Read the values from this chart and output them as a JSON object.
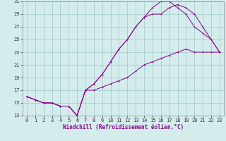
{
  "title": "",
  "xlabel": "Windchill (Refroidissement éolien,°C)",
  "ylabel": "",
  "xlim": [
    -0.5,
    23.5
  ],
  "ylim": [
    13,
    31
  ],
  "xticks": [
    0,
    1,
    2,
    3,
    4,
    5,
    6,
    7,
    8,
    9,
    10,
    11,
    12,
    13,
    14,
    15,
    16,
    17,
    18,
    19,
    20,
    21,
    22,
    23
  ],
  "yticks": [
    13,
    15,
    17,
    19,
    21,
    23,
    25,
    27,
    29,
    31
  ],
  "bg_color": "#d4ecec",
  "grid_color": "#a0c8c8",
  "line_color": "#880088",
  "line1_x": [
    0,
    1,
    2,
    3,
    4,
    5,
    6,
    7,
    8,
    9,
    10,
    11,
    12,
    13,
    14,
    15,
    16,
    17,
    18,
    19,
    20,
    21,
    22,
    23
  ],
  "line1_y": [
    16,
    15.5,
    15,
    15,
    14.5,
    14.5,
    13,
    17,
    18,
    19.5,
    21.5,
    23.5,
    25,
    27,
    28.5,
    29,
    29,
    30,
    30.5,
    30,
    29,
    27,
    25,
    23
  ],
  "line2_x": [
    0,
    1,
    2,
    3,
    4,
    5,
    6,
    7,
    8,
    9,
    10,
    11,
    12,
    13,
    14,
    15,
    16,
    17,
    18,
    19,
    20,
    21,
    22,
    23
  ],
  "line2_y": [
    16,
    15.5,
    15,
    15,
    14.5,
    14.5,
    13,
    17,
    18,
    19.5,
    21.5,
    23.5,
    25,
    27,
    28.5,
    30,
    31,
    31,
    30,
    29,
    27,
    26,
    25,
    23
  ],
  "line3_x": [
    0,
    1,
    2,
    3,
    4,
    5,
    6,
    7,
    8,
    9,
    10,
    11,
    12,
    13,
    14,
    15,
    16,
    17,
    18,
    19,
    20,
    21,
    22,
    23
  ],
  "line3_y": [
    16,
    15.5,
    15,
    15,
    14.5,
    14.5,
    13,
    17,
    17,
    17.5,
    18,
    18.5,
    19,
    20,
    21,
    21.5,
    22,
    22.5,
    23,
    23.5,
    23,
    23,
    23,
    23
  ],
  "tick_fontsize": 5,
  "xlabel_fontsize": 5.5,
  "lw": 0.7,
  "ms": 2.0
}
